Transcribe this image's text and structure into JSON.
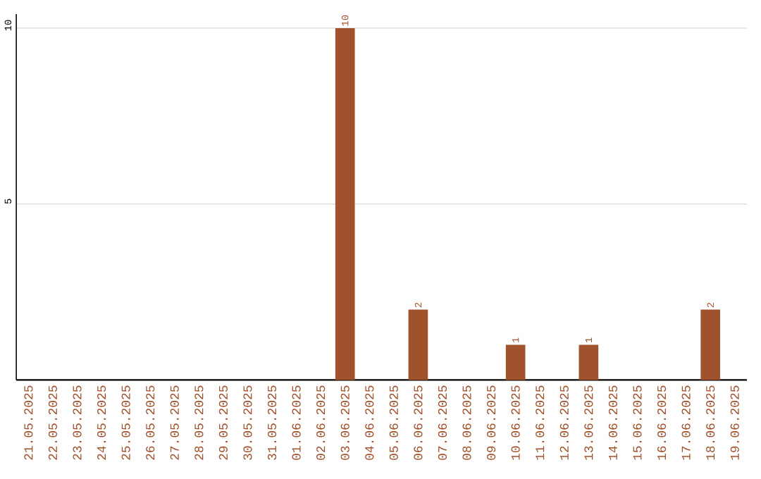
{
  "chart_data": {
    "type": "bar",
    "categories": [
      "21.05.2025",
      "22.05.2025",
      "23.05.2025",
      "24.05.2025",
      "25.05.2025",
      "26.05.2025",
      "27.05.2025",
      "28.05.2025",
      "29.05.2025",
      "30.05.2025",
      "31.05.2025",
      "01.06.2025",
      "02.06.2025",
      "03.06.2025",
      "04.06.2025",
      "05.06.2025",
      "06.06.2025",
      "07.06.2025",
      "08.06.2025",
      "09.06.2025",
      "10.06.2025",
      "11.06.2025",
      "12.06.2025",
      "13.06.2025",
      "14.06.2025",
      "15.06.2025",
      "16.06.2025",
      "17.06.2025",
      "18.06.2025",
      "19.06.2025"
    ],
    "values": [
      0,
      0,
      0,
      0,
      0,
      0,
      0,
      0,
      0,
      0,
      0,
      0,
      0,
      10,
      0,
      0,
      2,
      0,
      0,
      0,
      1,
      0,
      0,
      1,
      0,
      0,
      0,
      0,
      2,
      0
    ],
    "value_labels": [
      null,
      null,
      null,
      null,
      null,
      null,
      null,
      null,
      null,
      null,
      null,
      null,
      null,
      "10",
      null,
      null,
      "2",
      null,
      null,
      null,
      "1",
      null,
      null,
      "1",
      null,
      null,
      null,
      null,
      "2",
      null
    ],
    "color": "#a0522d",
    "ylim": [
      0,
      10.4
    ],
    "yticks": [
      5,
      10
    ],
    "grid": "y"
  }
}
